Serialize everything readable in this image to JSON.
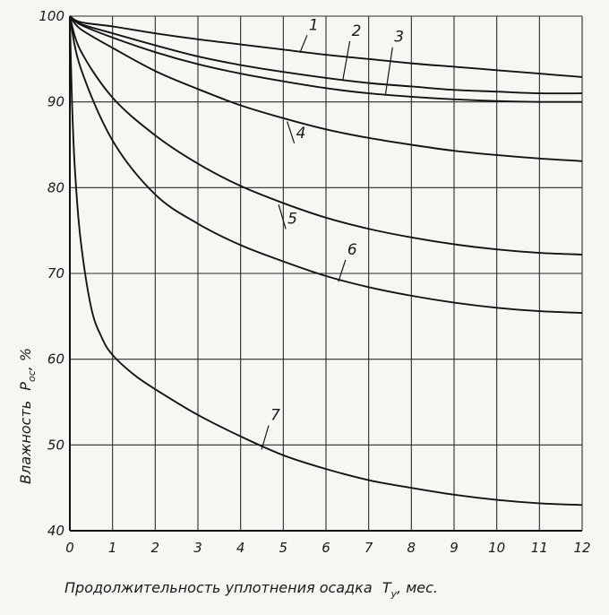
{
  "chart_data": {
    "type": "line",
    "title": "",
    "xlabel": "Продолжительность уплотнения осадка",
    "xlabel_symbol": "T",
    "xlabel_subscript": "у",
    "xlabel_unit": ", мес.",
    "ylabel": "Влажность",
    "ylabel_symbol": "P",
    "ylabel_subscript": "ос",
    "ylabel_unit": ", %",
    "xlim": [
      0,
      12
    ],
    "ylim": [
      40,
      100
    ],
    "xticks": [
      0,
      1,
      2,
      3,
      4,
      5,
      6,
      7,
      8,
      9,
      10,
      11,
      12
    ],
    "yticks": [
      40,
      50,
      60,
      70,
      80,
      90,
      100
    ],
    "ytick_labels": [
      "40",
      "50",
      "60",
      "70",
      "80",
      "90",
      "100"
    ],
    "grid": true,
    "series": [
      {
        "name": "1",
        "x": [
          0,
          0.25,
          1,
          2,
          3,
          4,
          5,
          6,
          7,
          8,
          9,
          10,
          11,
          12
        ],
        "y": [
          100,
          99.3,
          98.8,
          98.0,
          97.3,
          96.7,
          96.1,
          95.5,
          95.0,
          94.5,
          94.1,
          93.7,
          93.3,
          92.9
        ],
        "label_at": [
          5.6,
          98.4
        ]
      },
      {
        "name": "2",
        "x": [
          0,
          0.25,
          1,
          2,
          3,
          4,
          5,
          6,
          7,
          8,
          9,
          10,
          11,
          12
        ],
        "y": [
          100,
          99.1,
          98.0,
          96.6,
          95.3,
          94.3,
          93.5,
          92.8,
          92.2,
          91.8,
          91.4,
          91.2,
          91.0,
          91.0
        ],
        "label_at": [
          6.6,
          97.7
        ]
      },
      {
        "name": "3",
        "x": [
          0,
          0.25,
          1,
          2,
          3,
          4,
          5,
          6,
          7,
          8,
          9,
          10,
          11,
          12
        ],
        "y": [
          100,
          99.0,
          97.5,
          95.8,
          94.4,
          93.3,
          92.4,
          91.6,
          91.0,
          90.6,
          90.3,
          90.1,
          90.0,
          90.0
        ],
        "label_at": [
          7.6,
          97.0
        ]
      },
      {
        "name": "4",
        "x": [
          0,
          0.25,
          1,
          2,
          3,
          4,
          5,
          6,
          7,
          8,
          9,
          10,
          11,
          12
        ],
        "y": [
          100,
          98.5,
          96.3,
          93.6,
          91.5,
          89.6,
          88.1,
          86.8,
          85.8,
          85.0,
          84.3,
          83.8,
          83.4,
          83.1
        ],
        "label_at": [
          5.3,
          85.8
        ]
      },
      {
        "name": "5",
        "x": [
          0,
          0.25,
          1,
          2,
          3,
          4,
          5,
          6,
          7,
          8,
          9,
          10,
          11,
          12
        ],
        "y": [
          100,
          96.0,
          90.5,
          86.1,
          82.8,
          80.2,
          78.2,
          76.5,
          75.2,
          74.2,
          73.4,
          72.8,
          72.4,
          72.2
        ],
        "label_at": [
          5.1,
          75.8
        ]
      },
      {
        "name": "6",
        "x": [
          0,
          0.25,
          1,
          2,
          3,
          4,
          5,
          6,
          7,
          8,
          9,
          10,
          11,
          12
        ],
        "y": [
          100,
          94.0,
          85.5,
          79.2,
          75.8,
          73.3,
          71.4,
          69.7,
          68.4,
          67.4,
          66.6,
          66.0,
          65.6,
          65.4
        ],
        "label_at": [
          6.5,
          72.2
        ]
      },
      {
        "name": "7",
        "x": [
          0,
          0.05,
          0.12,
          0.25,
          0.5,
          0.75,
          1,
          1.5,
          2,
          3,
          4,
          5,
          6,
          7,
          8,
          9,
          10,
          11,
          12
        ],
        "y": [
          100,
          90,
          82,
          74,
          66,
          62.5,
          60.5,
          58.2,
          56.5,
          53.5,
          51.0,
          48.8,
          47.2,
          45.9,
          45.0,
          44.2,
          43.6,
          43.2,
          43.0
        ],
        "label_at": [
          4.7,
          52.9
        ]
      }
    ]
  }
}
